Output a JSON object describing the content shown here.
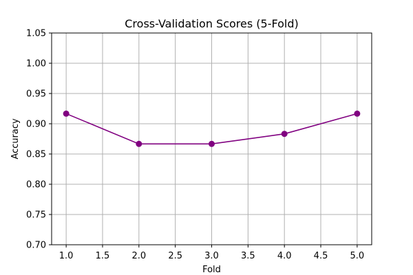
{
  "chart_data": {
    "type": "line",
    "title": "Cross-Validation Scores (5-Fold)",
    "xlabel": "Fold",
    "ylabel": "Accuracy",
    "xlim": [
      0.8,
      5.2
    ],
    "ylim": [
      0.7,
      1.05
    ],
    "x_ticks": [
      "1.0",
      "1.5",
      "2.0",
      "2.5",
      "3.0",
      "3.5",
      "4.0",
      "4.5",
      "5.0"
    ],
    "y_ticks": [
      "0.70",
      "0.75",
      "0.80",
      "0.85",
      "0.90",
      "0.95",
      "1.00",
      "1.05"
    ],
    "grid": true,
    "series": [
      {
        "x": [
          1,
          2,
          3,
          4,
          5
        ],
        "values": [
          0.9167,
          0.8667,
          0.8667,
          0.8833,
          0.9167
        ],
        "color": "#800080",
        "marker": "circle"
      }
    ]
  }
}
